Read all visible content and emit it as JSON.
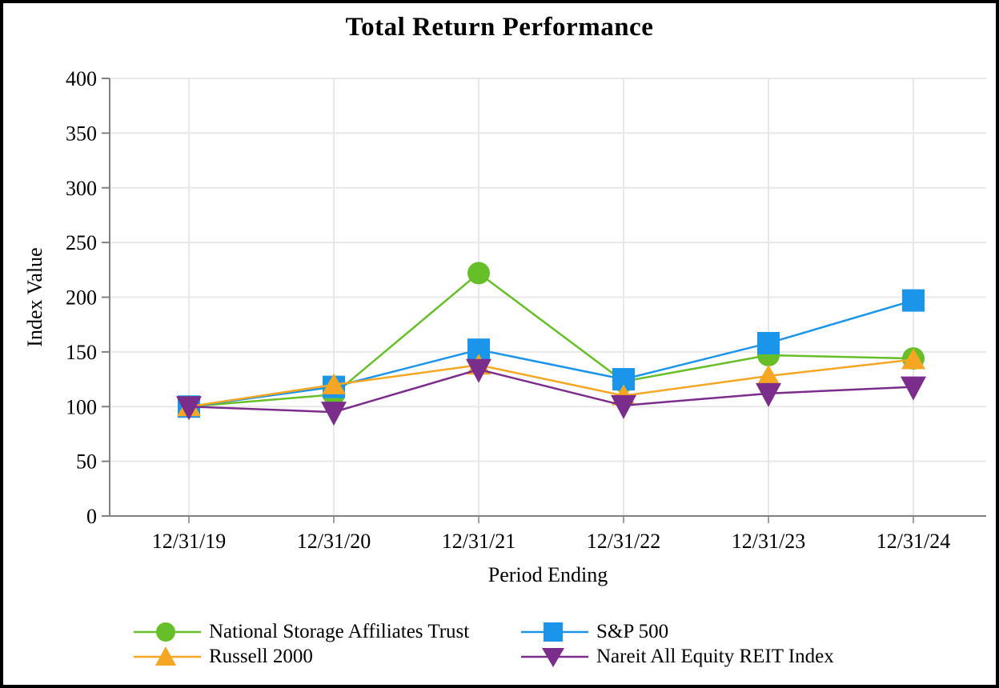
{
  "title": "Total Return Performance",
  "chart_data": {
    "type": "line",
    "title": "Total Return Performance",
    "xlabel": "Period Ending",
    "ylabel": "Index Value",
    "ylim": [
      0,
      400
    ],
    "ytick_step": 50,
    "grid": true,
    "legend_position": "bottom-two-columns",
    "categories": [
      "12/31/19",
      "12/31/20",
      "12/31/21",
      "12/31/22",
      "12/31/23",
      "12/31/24"
    ],
    "series": [
      {
        "name": "National Storage Affiliates Trust",
        "marker": "circle",
        "color": "#66bf28",
        "values": [
          100,
          111,
          222,
          123,
          147,
          144
        ]
      },
      {
        "name": "S&P 500",
        "marker": "square",
        "color": "#1b95ea",
        "values": [
          100,
          118,
          152,
          125,
          158,
          197
        ]
      },
      {
        "name": "Russell 2000",
        "marker": "triangle-up",
        "color": "#f5a623",
        "values": [
          100,
          120,
          138,
          110,
          128,
          143
        ]
      },
      {
        "name": "Nareit All Equity REIT Index",
        "marker": "triangle-down",
        "color": "#7b2d8b",
        "values": [
          100,
          95,
          134,
          101,
          112,
          118
        ]
      }
    ]
  },
  "style_colors": {
    "axis_line": "#808080",
    "gridline": "#e8e8e8",
    "tick": "#808080",
    "text": "#000000"
  }
}
